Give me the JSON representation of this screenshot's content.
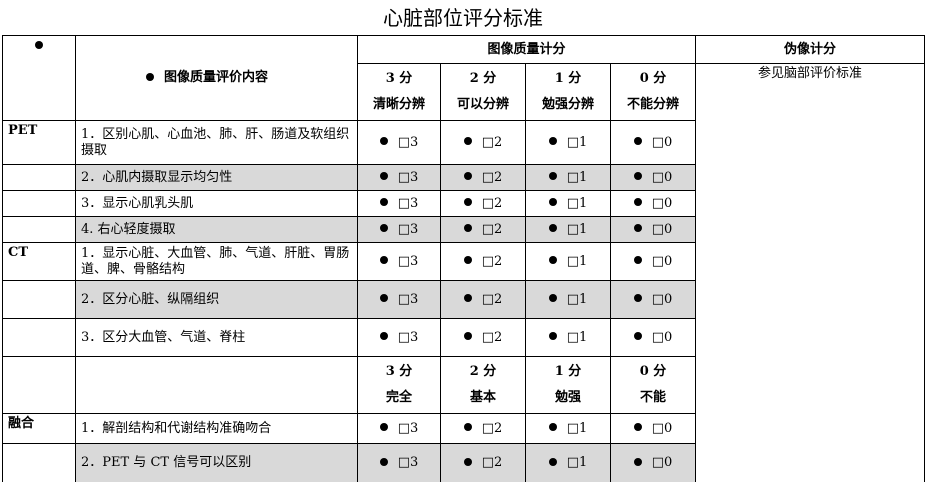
{
  "title": "心脏部位评分标准",
  "table": {
    "header": {
      "content": "图像质量评价内容",
      "quality": "图像质量计分",
      "artifact": "伪像计分",
      "artifact_note": "参见脑部评价标准",
      "levels": [
        {
          "score": "3 分",
          "label": "清晰分辨"
        },
        {
          "score": "2 分",
          "label": "可以分辨"
        },
        {
          "score": "1 分",
          "label": "勉强分辨"
        },
        {
          "score": "0 分",
          "label": "不能分辨"
        }
      ]
    },
    "groups": [
      {
        "name": "PET",
        "rows": [
          {
            "text": "1．区别心肌、心血池、肺、肝、肠道及软组织摄取",
            "scores": [
              "□3",
              "□2",
              "□1",
              "□0"
            ]
          },
          {
            "text": "2．心肌内摄取显示均匀性",
            "scores": [
              "□3",
              "□2",
              "□1",
              "□0"
            ]
          },
          {
            "text": "3．显示心肌乳头肌",
            "scores": [
              "□3",
              "□2",
              "□1",
              "□0"
            ]
          },
          {
            "text": "4. 右心轻度摄取",
            "scores": [
              "□3",
              "□2",
              "□1",
              "□0"
            ]
          }
        ]
      },
      {
        "name": "CT",
        "rows": [
          {
            "text": "1．显示心脏、大血管、肺、气道、肝脏、胃肠道、脾、骨骼结构",
            "scores": [
              "□3",
              "□2",
              "□1",
              "□0"
            ]
          },
          {
            "text": "2．区分心脏、纵隔组织",
            "scores": [
              "□3",
              "□2",
              "□1",
              "□0"
            ]
          },
          {
            "text": "3．区分大血管、气道、脊柱",
            "scores": [
              "□3",
              "□2",
              "□1",
              "□0"
            ]
          }
        ]
      },
      {
        "name": "融合",
        "rows": [
          {
            "text": "1．解剖结构和代谢结构准确吻合",
            "scores": [
              "□3",
              "□2",
              "□1",
              "□0"
            ]
          },
          {
            "text": "2．PET 与 CT 信号可以区别",
            "scores": [
              "□3",
              "□2",
              "□1",
              "□0"
            ]
          }
        ]
      }
    ],
    "fusion_levels": [
      {
        "score": "3 分",
        "label": "完全"
      },
      {
        "score": "2 分",
        "label": "基本"
      },
      {
        "score": "1 分",
        "label": "勉强"
      },
      {
        "score": "0 分",
        "label": "不能"
      }
    ]
  }
}
